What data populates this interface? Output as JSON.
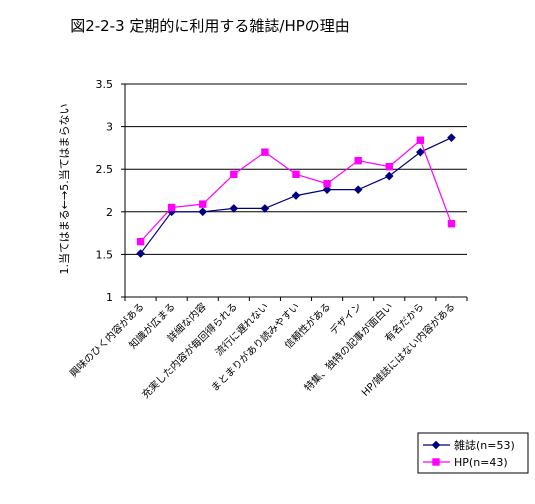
{
  "chart_data": {
    "type": "line",
    "title": "図2-2-3 定期的に利用する雑誌/HPの理由",
    "ylabel": "1.当てはまる←→5.当てはまらない",
    "xlabel": "",
    "ylim": [
      1,
      3.5
    ],
    "yticks": [
      "1",
      "1.5",
      "2",
      "2.5",
      "3",
      "3.5"
    ],
    "ytick_values": [
      1,
      1.5,
      2,
      2.5,
      3,
      3.5
    ],
    "grid": true,
    "legend_position": "bottom-right",
    "categories": [
      "興味のひく内容がある",
      "知識が広まる",
      "詳細な内容",
      "充実した内容が毎回得られる",
      "流行に遅れない",
      "まとまりがあり読みやすい",
      "信頼性がある",
      "デザイン",
      "特集、独特の記事が面白い",
      "有名だから",
      "HP/雑誌にはない内容がある"
    ],
    "series": [
      {
        "name": "雑誌(n=53)",
        "color": "#000080",
        "marker": "diamond",
        "values": [
          1.51,
          2.0,
          2.0,
          2.04,
          2.04,
          2.19,
          2.26,
          2.26,
          2.42,
          2.7,
          2.87
        ]
      },
      {
        "name": "HP(n=43)",
        "color": "#ff00ff",
        "marker": "square",
        "values": [
          1.65,
          2.05,
          2.09,
          2.44,
          2.7,
          2.44,
          2.33,
          2.6,
          2.53,
          2.84,
          1.86
        ]
      }
    ]
  }
}
